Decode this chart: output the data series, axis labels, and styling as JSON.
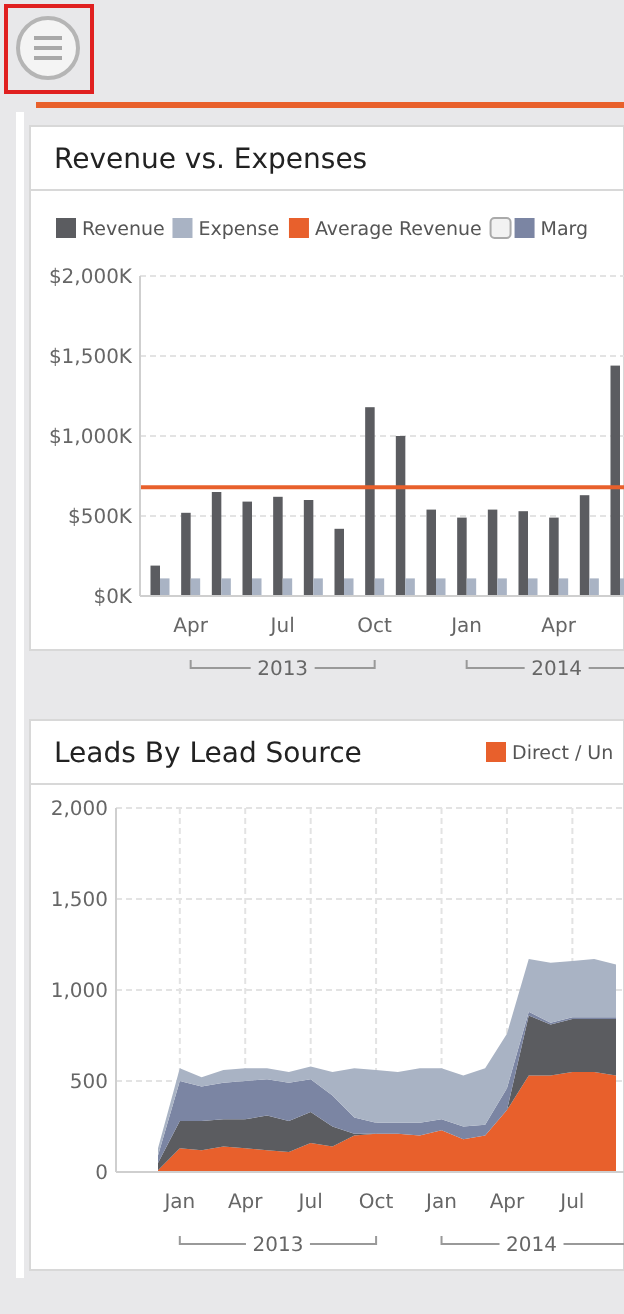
{
  "chart_data": [
    {
      "type": "bar",
      "title": "Revenue vs. Expenses",
      "categories": [
        null,
        "Apr",
        null,
        null,
        "Jul",
        null,
        null,
        "Oct",
        null,
        null,
        "Jan",
        null,
        null,
        "Apr",
        null,
        null
      ],
      "series": [
        {
          "name": "Revenue",
          "color": "#5b5c60",
          "values": [
            190,
            520,
            650,
            590,
            620,
            600,
            420,
            1180,
            1000,
            540,
            490,
            540,
            530,
            490,
            630,
            1440
          ]
        },
        {
          "name": "Expense",
          "color": "#a9b3c4",
          "values": [
            110,
            110,
            110,
            110,
            110,
            110,
            110,
            110,
            110,
            110,
            110,
            110,
            110,
            110,
            110,
            110
          ]
        },
        {
          "name": "Marg",
          "color": "#7b85a3",
          "values": [
            null,
            null,
            null,
            null,
            null,
            null,
            null,
            null,
            null,
            null,
            null,
            null,
            null,
            null,
            null,
            null
          ]
        }
      ],
      "ylim": [
        0,
        2000
      ],
      "yticks": [
        {
          "value": 0,
          "label": "$0K"
        },
        {
          "value": 500,
          "label": "$500K"
        },
        {
          "value": 1000,
          "label": "$1,000K"
        },
        {
          "value": 1500,
          "label": "$1,500K"
        },
        {
          "value": 2000,
          "label": "$2,000K"
        }
      ],
      "ref_lines": [
        {
          "axis": "y",
          "value": 680,
          "label": "Average Revenue",
          "color": "#e8602c"
        }
      ],
      "annotations": [
        "2013",
        "2014"
      ],
      "grid": "y",
      "legend": "top"
    },
    {
      "type": "area",
      "title": "Leads By Lead Source",
      "stacked": true,
      "categories": [
        null,
        "Jan",
        null,
        null,
        "Apr",
        null,
        null,
        "Jul",
        null,
        null,
        "Oct",
        null,
        null,
        "Jan",
        null,
        null,
        "Apr",
        null,
        null,
        "Jul",
        null,
        null
      ],
      "series": [
        {
          "name": "Direct / Un",
          "color": "#e8602c",
          "values": [
            10,
            130,
            120,
            140,
            130,
            120,
            110,
            160,
            140,
            200,
            210,
            210,
            200,
            230,
            180,
            200,
            340,
            530,
            530,
            550,
            550,
            530
          ]
        },
        {
          "color": "#5b5c60",
          "values": [
            40,
            150,
            160,
            150,
            160,
            190,
            170,
            170,
            110,
            10,
            0,
            0,
            0,
            0,
            0,
            0,
            0,
            330,
            280,
            290,
            290,
            310
          ]
        },
        {
          "color": "#7b85a3",
          "values": [
            40,
            220,
            190,
            200,
            210,
            200,
            210,
            180,
            170,
            90,
            60,
            60,
            70,
            60,
            70,
            60,
            120,
            20,
            10,
            10,
            10,
            10
          ]
        },
        {
          "color": "#a9b3c4",
          "values": [
            40,
            70,
            50,
            70,
            70,
            60,
            60,
            70,
            130,
            270,
            290,
            280,
            300,
            280,
            280,
            310,
            300,
            290,
            330,
            310,
            320,
            290
          ]
        }
      ],
      "ylim": [
        0,
        2000
      ],
      "yticks": [
        0,
        500,
        {
          "value": 1000,
          "label": "1,000"
        },
        {
          "value": 1500,
          "label": "1,500"
        },
        {
          "value": 2000,
          "label": "2,000"
        }
      ],
      "annotations": [
        "2013",
        "2014"
      ],
      "grid": true,
      "legend": "top right"
    }
  ]
}
